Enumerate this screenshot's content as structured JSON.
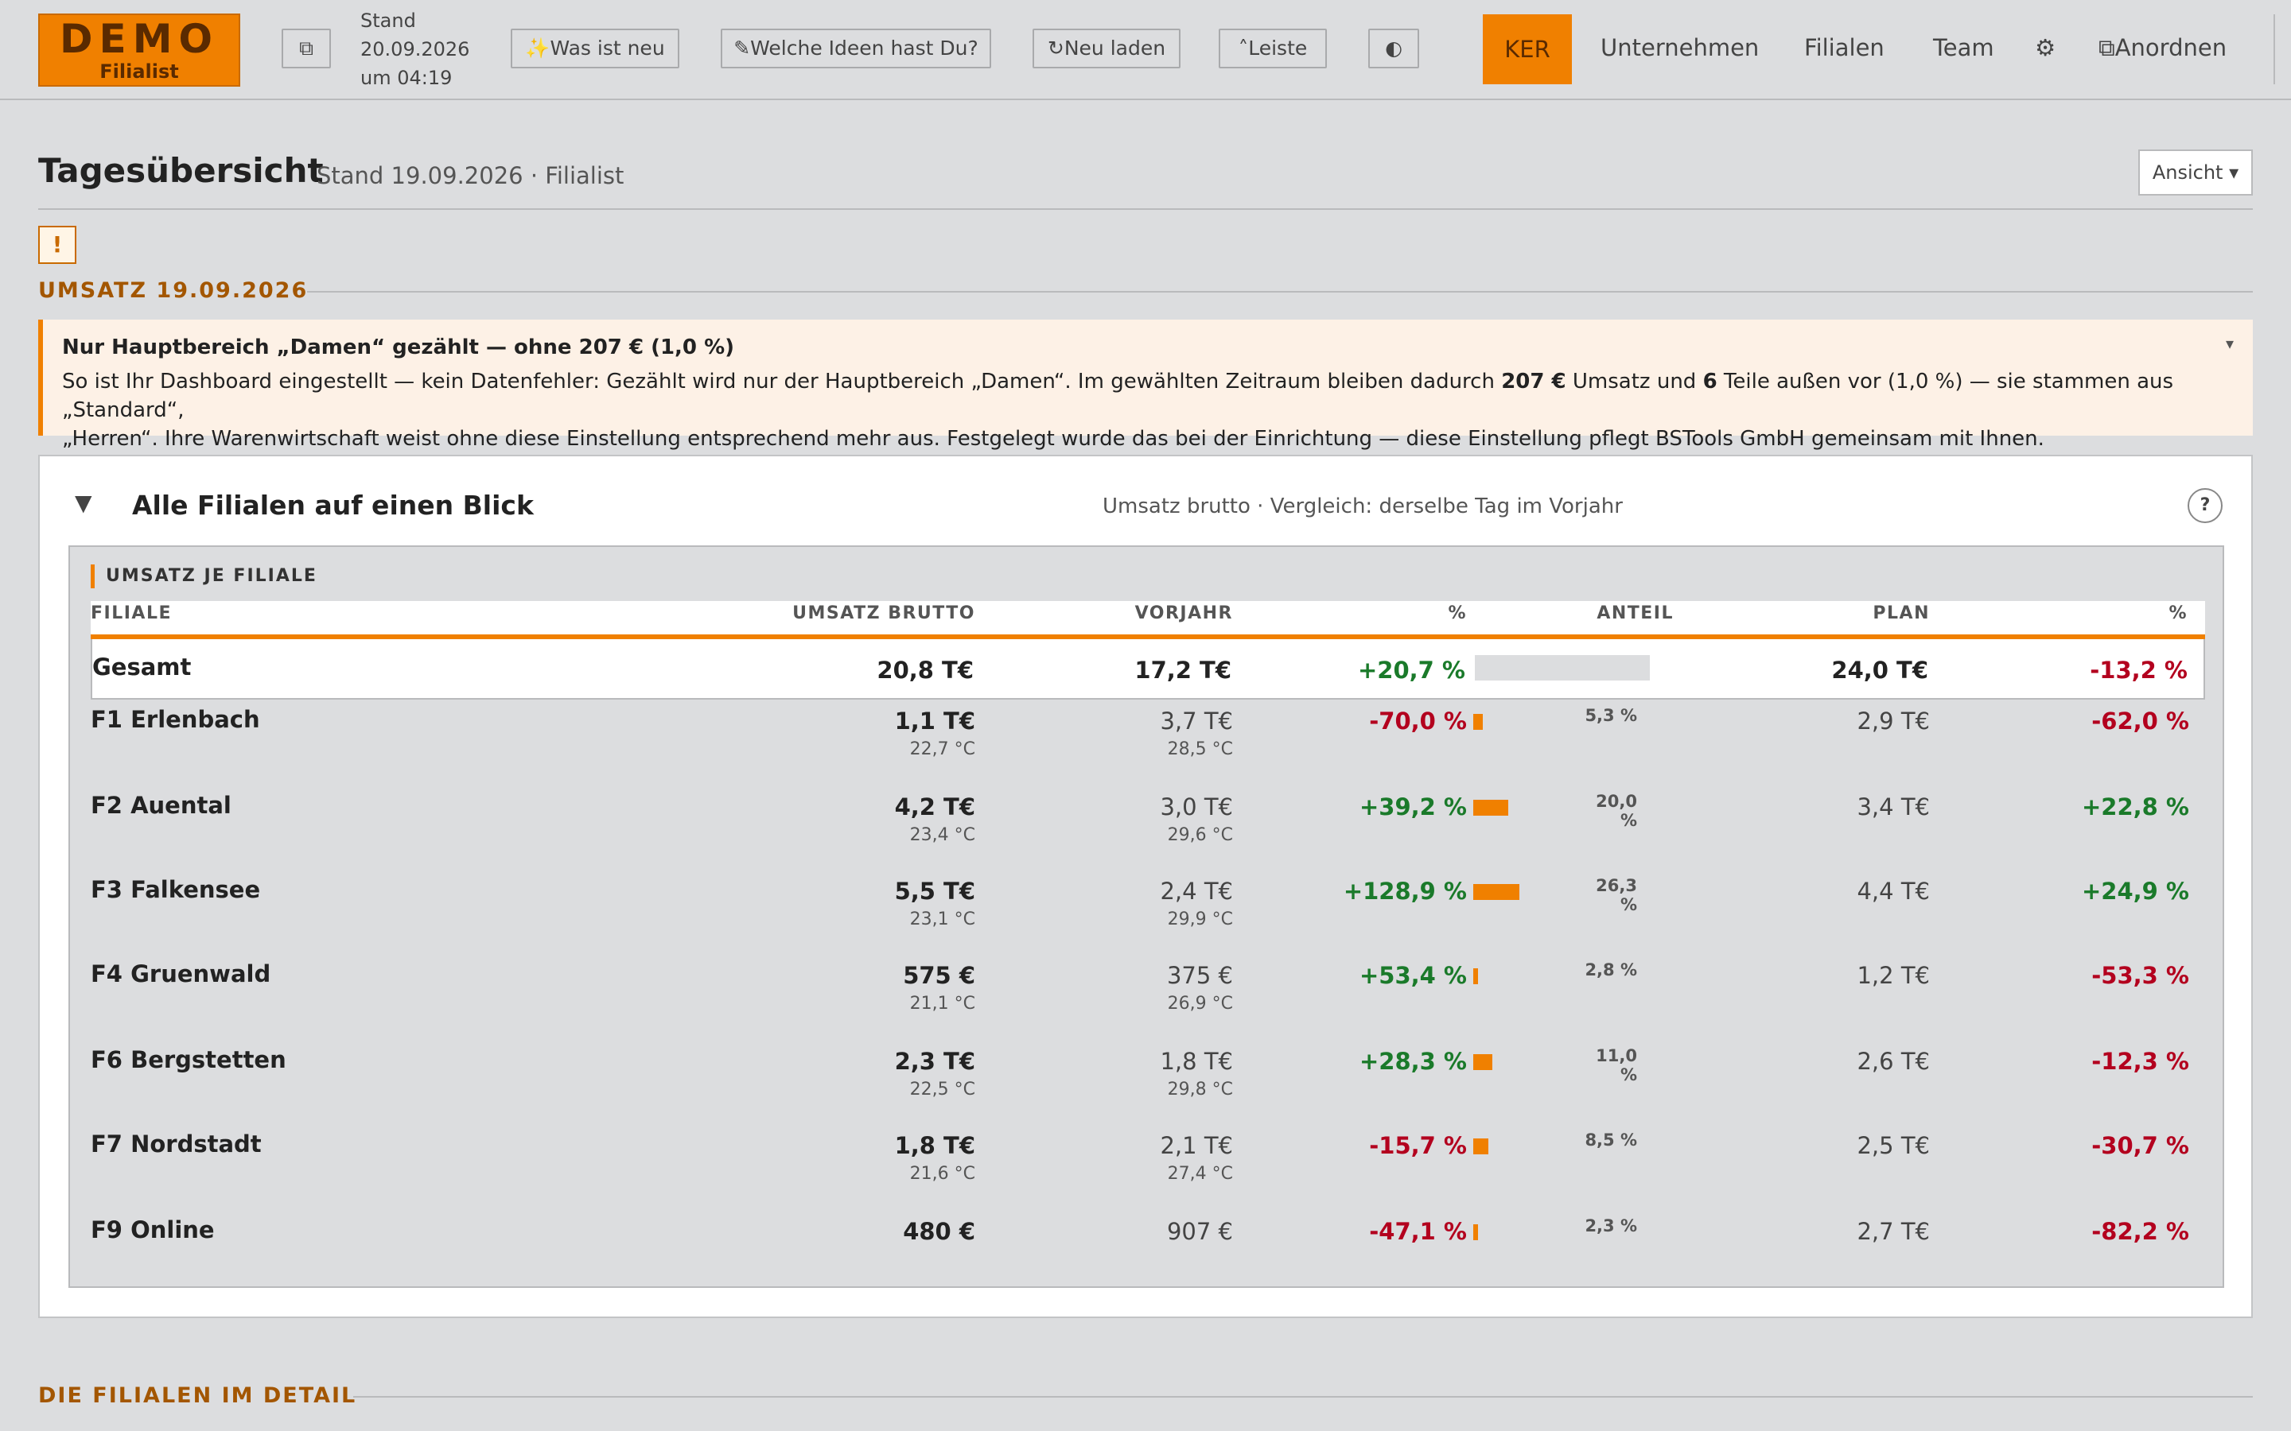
{
  "topbar": {
    "logo_line1": "DEMO",
    "logo_line2": "Filialist",
    "copy_icon": "⧉",
    "stand_label": "Stand",
    "stand_date": "20.09.2026",
    "stand_time": "um 04:19",
    "btn_new": "✨Was ist neu",
    "btn_ideas": "✎Welche Ideen hast Du?",
    "btn_reload": "↻Neu laden",
    "btn_bar": "˄Leiste",
    "btn_theme": "◐",
    "nav_active": "KER",
    "nav_company": "Unternehmen",
    "nav_branches": "Filialen",
    "nav_team": "Team",
    "nav_settings": "⚙",
    "nav_arrange": "⧉Anordnen"
  },
  "heading": {
    "title": "Tagesübersicht",
    "subtitle": "Stand 19.09.2026 · Filialist",
    "view_button": "Ansicht ▾",
    "warn_icon": "!"
  },
  "umsatz_section": {
    "title": "UMSATZ 19.09.2026"
  },
  "notice": {
    "title": "Nur Hauptbereich „Damen“ gezählt — ohne 207 € (1,0 %)",
    "body_1": "So ist Ihr Dashboard eingestellt — kein Datenfehler: Gezählt wird nur der Hauptbereich „Damen“. Im gewählten Zeitraum bleiben dadurch ",
    "body_amount": "207 €",
    "body_2": " Umsatz und ",
    "body_count": "6",
    "body_3": " Teile außen vor (1,0 %) — sie stammen aus „Standard“,",
    "body_4": "„Herren“. Ihre Warenwirtschaft weist ohne diese Einstellung entsprechend mehr aus. Festgelegt wurde das bei der Einrichtung — diese Einstellung pflegt BSTools GmbH gemeinsam mit Ihnen.",
    "collapse_icon": "▾"
  },
  "panel": {
    "toggle_icon": "▼",
    "title": "Alle Filialen auf einen Blick",
    "subtitle": "Umsatz brutto · Vergleich: derselbe Tag im Vorjahr",
    "help": "?",
    "inner_label": "UMSATZ JE FILIALE",
    "headers": {
      "branch": "FILIALE",
      "revenue": "UMSATZ BRUTTO",
      "prev": "VORJAHR",
      "pct": "%",
      "share": "ANTEIL",
      "plan": "PLAN",
      "plan_pct": "%"
    },
    "total": {
      "name": "Gesamt",
      "revenue": "20,8 T€",
      "prev": "17,2 T€",
      "pct": "+20,7 %",
      "plan": "24,0 T€",
      "plan_pct": "-13,2 %"
    },
    "rows": [
      {
        "name": "F1 Erlenbach",
        "revenue": "1,1 T€",
        "temp": "22,7 °C",
        "prev": "3,7 T€",
        "prev_temp": "28,5 °C",
        "pct": "-70,0 %",
        "share": "5,3 %",
        "share_value": 5.3,
        "plan": "2,9 T€",
        "plan_pct": "-62,0 %"
      },
      {
        "name": "F2 Auental",
        "revenue": "4,2 T€",
        "temp": "23,4 °C",
        "prev": "3,0 T€",
        "prev_temp": "29,6 °C",
        "pct": "+39,2 %",
        "share": "20,0 %",
        "share_value": 20.0,
        "plan": "3,4 T€",
        "plan_pct": "+22,8 %"
      },
      {
        "name": "F3 Falkensee",
        "revenue": "5,5 T€",
        "temp": "23,1 °C",
        "prev": "2,4 T€",
        "prev_temp": "29,9 °C",
        "pct": "+128,9 %",
        "share": "26,3 %",
        "share_value": 26.3,
        "plan": "4,4 T€",
        "plan_pct": "+24,9 %"
      },
      {
        "name": "F4 Gruenwald",
        "revenue": "575 €",
        "temp": "21,1 °C",
        "prev": "375 €",
        "prev_temp": "26,9 °C",
        "pct": "+53,4 %",
        "share": "2,8 %",
        "share_value": 2.8,
        "plan": "1,2 T€",
        "plan_pct": "-53,3 %"
      },
      {
        "name": "F6 Bergstetten",
        "revenue": "2,3 T€",
        "temp": "22,5 °C",
        "prev": "1,8 T€",
        "prev_temp": "29,8 °C",
        "pct": "+28,3 %",
        "share": "11,0 %",
        "share_value": 11.0,
        "plan": "2,6 T€",
        "plan_pct": "-12,3 %"
      },
      {
        "name": "F7 Nordstadt",
        "revenue": "1,8 T€",
        "temp": "21,6 °C",
        "prev": "2,1 T€",
        "prev_temp": "27,4 °C",
        "pct": "-15,7 %",
        "share": "8,5 %",
        "share_value": 8.5,
        "plan": "2,5 T€",
        "plan_pct": "-30,7 %"
      },
      {
        "name": "F9 Online",
        "revenue": "480 €",
        "temp": "",
        "prev": "907 €",
        "prev_temp": "",
        "pct": "-47,1 %",
        "share": "2,3 %",
        "share_value": 2.3,
        "plan": "2,7 T€",
        "plan_pct": "-82,2 %"
      }
    ]
  },
  "detail_section": {
    "title": "DIE FILIALEN IM DETAIL"
  },
  "colors": {
    "accent": "#f08000",
    "positive": "#1a7a2a",
    "negative": "#b3001e"
  }
}
